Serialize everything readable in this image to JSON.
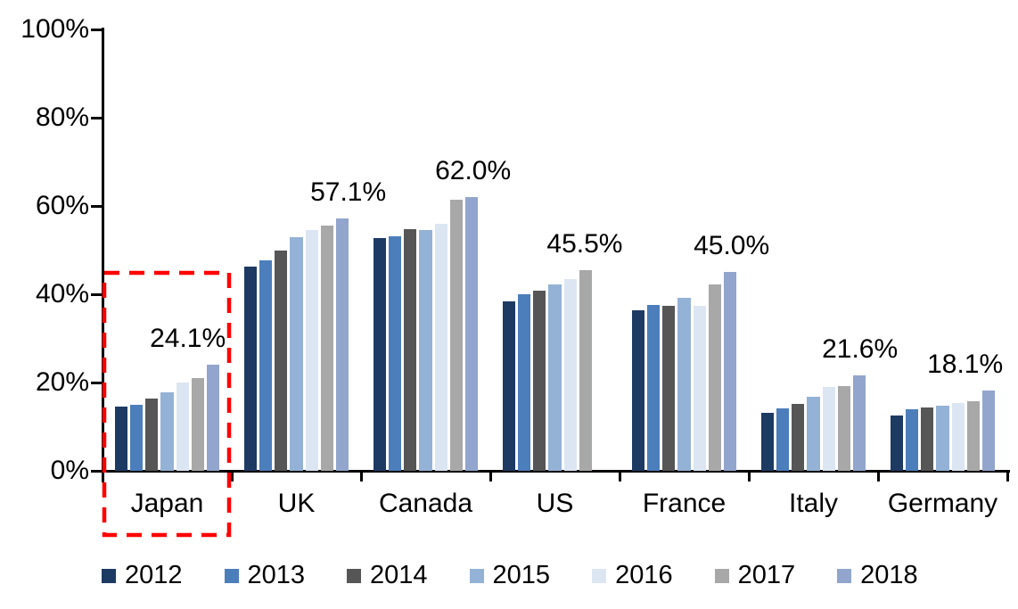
{
  "chart_data": {
    "type": "bar",
    "title": "",
    "xlabel": "",
    "ylabel": "",
    "categories": [
      "Japan",
      "UK",
      "Canada",
      "US",
      "France",
      "Italy",
      "Germany"
    ],
    "series": [
      {
        "name": "2012",
        "color": "#1D3A63",
        "values": [
          14.6,
          46.2,
          52.8,
          38.3,
          36.4,
          13.2,
          12.5
        ]
      },
      {
        "name": "2013",
        "color": "#4C7EBB",
        "values": [
          14.9,
          47.7,
          53.2,
          40.0,
          37.5,
          14.1,
          14.0
        ]
      },
      {
        "name": "2014",
        "color": "#565656",
        "values": [
          16.4,
          49.8,
          54.7,
          40.9,
          37.4,
          15.1,
          14.3
        ]
      },
      {
        "name": "2015",
        "color": "#94B2D6",
        "values": [
          17.8,
          53.0,
          54.5,
          42.2,
          39.1,
          16.8,
          14.7
        ]
      },
      {
        "name": "2016",
        "color": "#DCE6F2",
        "values": [
          19.9,
          54.5,
          56.0,
          43.5,
          37.3,
          19.0,
          15.3
        ]
      },
      {
        "name": "2017",
        "color": "#A8A8A8",
        "values": [
          21.0,
          55.6,
          61.4,
          45.5,
          42.3,
          19.2,
          15.8
        ]
      },
      {
        "name": "2018",
        "color": "#92A5CD",
        "values": [
          24.1,
          57.1,
          62.0,
          null,
          45.0,
          21.6,
          18.1
        ]
      }
    ],
    "data_labels": [
      "24.1%",
      "57.1%",
      "62.0%",
      "45.5%",
      "45.0%",
      "21.6%",
      "18.1%"
    ],
    "y_ticks": [
      "0%",
      "20%",
      "40%",
      "60%",
      "80%",
      "100%"
    ],
    "ylim": [
      0,
      100
    ],
    "grid": false,
    "legend_position": "bottom",
    "legend_entries": [
      "2012",
      "2013",
      "2014",
      "2015",
      "2016",
      "2017",
      "2018"
    ],
    "highlighted_category": "Japan",
    "highlight_box_color": "#FF0000",
    "axis_color": "#000000",
    "text_color": "#000000"
  }
}
